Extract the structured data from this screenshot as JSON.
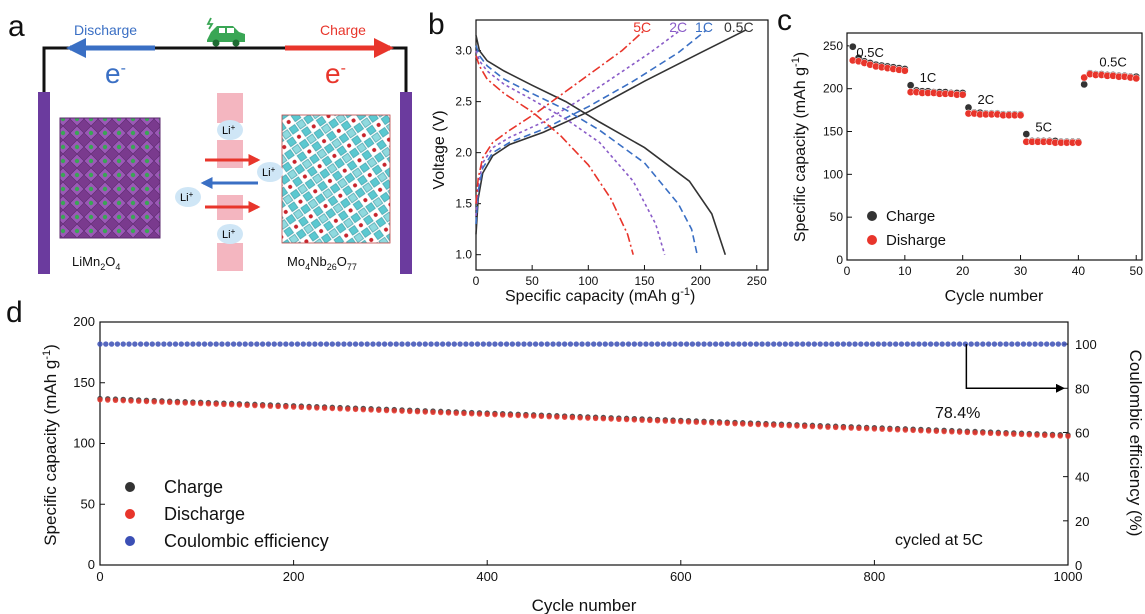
{
  "panel_a": {
    "letter": "a",
    "discharge_label": "Discharge",
    "charge_label": "Charge",
    "electron": "e",
    "electron_sup": "-",
    "ion": "Li",
    "ion_sup": "+",
    "left_material": {
      "base": "LiMn",
      "sub1": "2",
      "mid": "O",
      "sub2": "4"
    },
    "right_material": {
      "p1": "Mo",
      "s1": "4",
      "p2": "Nb",
      "s2": "26",
      "p3": "O",
      "s3": "77"
    },
    "icon": "electric-car-icon",
    "colors": {
      "discharge": "#3a6fc4",
      "charge": "#e8352b",
      "electrode": "#6b3b9e",
      "separator": "#f4b6c0",
      "ion_bubble": "#cfe6f6"
    }
  },
  "chart_data": [
    {
      "type": "line",
      "panel": "b",
      "xlabel": "Specific capacity (mAh g",
      "xlabel_sup": "-1",
      "xlabel_end": ")",
      "ylabel": "Voltage (V)",
      "xlim": [
        0,
        260
      ],
      "ylim": [
        0.85,
        3.3
      ],
      "xticks": [
        0,
        50,
        100,
        150,
        200,
        250
      ],
      "yticks": [
        1.0,
        1.5,
        2.0,
        2.5,
        3.0
      ],
      "ytick_labels": [
        "1.0",
        "1.5",
        "2.0",
        "2.5",
        "3.0"
      ],
      "rate_labels": [
        {
          "text": "5C",
          "color": "#e8352b",
          "x": 148,
          "y": 3.2
        },
        {
          "text": "2C",
          "color": "#8a5cc8",
          "x": 180,
          "y": 3.2
        },
        {
          "text": "1C",
          "color": "#3a6fc4",
          "x": 203,
          "y": 3.2
        },
        {
          "text": "0.5C",
          "color": "#333333",
          "x": 234,
          "y": 3.2
        }
      ],
      "series": [
        {
          "name": "0.5C",
          "color": "#333333",
          "dash": "",
          "charge": {
            "x": [
              0,
              2,
              6,
              15,
              30,
              60,
              100,
              150,
              200,
              240
            ],
            "y": [
              1.2,
              1.55,
              1.8,
              1.97,
              2.08,
              2.2,
              2.4,
              2.7,
              2.98,
              3.2
            ]
          },
          "discharge": {
            "x": [
              0,
              3,
              10,
              25,
              50,
              80,
              110,
              150,
              190,
              210,
              222
            ],
            "y": [
              3.15,
              3.0,
              2.9,
              2.8,
              2.66,
              2.5,
              2.3,
              2.05,
              1.72,
              1.4,
              1.0
            ]
          }
        },
        {
          "name": "1C",
          "color": "#3a6fc4",
          "dash": "7,4",
          "charge": {
            "x": [
              0,
              2,
              6,
              15,
              30,
              60,
              100,
              140,
              180,
              205
            ],
            "y": [
              1.3,
              1.62,
              1.85,
              2.0,
              2.1,
              2.23,
              2.45,
              2.7,
              2.98,
              3.2
            ]
          },
          "discharge": {
            "x": [
              0,
              3,
              10,
              25,
              50,
              80,
              110,
              150,
              180,
              192,
              197
            ],
            "y": [
              3.05,
              2.95,
              2.85,
              2.72,
              2.58,
              2.42,
              2.22,
              1.9,
              1.5,
              1.25,
              1.0
            ]
          }
        },
        {
          "name": "2C",
          "color": "#8a5cc8",
          "dash": "3,3",
          "charge": {
            "x": [
              0,
              2,
              6,
              15,
              30,
              60,
              90,
              120,
              155,
              182
            ],
            "y": [
              1.38,
              1.68,
              1.9,
              2.05,
              2.15,
              2.3,
              2.5,
              2.72,
              2.98,
              3.2
            ]
          },
          "discharge": {
            "x": [
              0,
              3,
              10,
              25,
              50,
              80,
              110,
              140,
              160,
              168
            ],
            "y": [
              3.0,
              2.9,
              2.8,
              2.67,
              2.52,
              2.33,
              2.1,
              1.72,
              1.3,
              1.0
            ]
          }
        },
        {
          "name": "5C",
          "color": "#e8352b",
          "dash": "9,3,2,3",
          "charge": {
            "x": [
              0,
              2,
              6,
              15,
              30,
              55,
              80,
              105,
              130,
              150
            ],
            "y": [
              1.5,
              1.75,
              1.95,
              2.1,
              2.22,
              2.4,
              2.6,
              2.8,
              3.0,
              3.2
            ]
          },
          "discharge": {
            "x": [
              0,
              3,
              10,
              25,
              50,
              75,
              100,
              120,
              135,
              140
            ],
            "y": [
              2.95,
              2.85,
              2.72,
              2.58,
              2.4,
              2.17,
              1.88,
              1.55,
              1.2,
              1.0
            ]
          }
        }
      ]
    },
    {
      "type": "scatter",
      "panel": "c",
      "xlabel": "Cycle number",
      "ylabel": "Specific capacity (mAh g",
      "ylabel_sup": "-1",
      "ylabel_end": ")",
      "xlim": [
        0,
        51
      ],
      "ylim": [
        0,
        265
      ],
      "xticks": [
        0,
        10,
        20,
        30,
        40,
        50
      ],
      "yticks": [
        0,
        50,
        100,
        150,
        200,
        250
      ],
      "legend": [
        {
          "label": "Charge",
          "color": "#333333"
        },
        {
          "label": "Disharge",
          "color": "#e8352b"
        }
      ],
      "rate_labels": [
        {
          "text": "0.5C",
          "x": 4,
          "y": 237
        },
        {
          "text": "1C",
          "x": 14,
          "y": 208
        },
        {
          "text": "2C",
          "x": 24,
          "y": 182
        },
        {
          "text": "5C",
          "x": 34,
          "y": 150
        },
        {
          "text": "0.5C",
          "x": 46,
          "y": 226
        }
      ],
      "series": [
        {
          "name": "Charge",
          "color": "#333333",
          "x": [
            1,
            2,
            3,
            4,
            5,
            6,
            7,
            8,
            9,
            10,
            11,
            12,
            13,
            14,
            15,
            16,
            17,
            18,
            19,
            20,
            21,
            22,
            23,
            24,
            25,
            26,
            27,
            28,
            29,
            30,
            31,
            32,
            33,
            34,
            35,
            36,
            37,
            38,
            39,
            40,
            41,
            42,
            43,
            44,
            45,
            46,
            47,
            48,
            49,
            50
          ],
          "y": [
            249,
            236,
            232,
            230,
            228,
            227,
            226,
            225,
            224,
            223,
            204,
            198,
            197,
            197,
            196,
            196,
            196,
            195,
            195,
            195,
            178,
            172,
            172,
            171,
            171,
            171,
            170,
            170,
            170,
            170,
            147,
            139,
            139,
            139,
            139,
            139,
            138,
            138,
            138,
            138,
            205,
            218,
            217,
            217,
            216,
            216,
            215,
            215,
            214,
            214
          ]
        },
        {
          "name": "Disharge",
          "color": "#e8352b",
          "x": [
            1,
            2,
            3,
            4,
            5,
            6,
            7,
            8,
            9,
            10,
            11,
            12,
            13,
            14,
            15,
            16,
            17,
            18,
            19,
            20,
            21,
            22,
            23,
            24,
            25,
            26,
            27,
            28,
            29,
            30,
            31,
            32,
            33,
            34,
            35,
            36,
            37,
            38,
            39,
            40,
            41,
            42,
            43,
            44,
            45,
            46,
            47,
            48,
            49,
            50
          ],
          "y": [
            233,
            232,
            230,
            228,
            226,
            225,
            224,
            223,
            222,
            221,
            196,
            196,
            195,
            195,
            195,
            194,
            194,
            194,
            193,
            193,
            171,
            171,
            170,
            170,
            170,
            170,
            169,
            169,
            169,
            169,
            138,
            138,
            138,
            138,
            138,
            137,
            137,
            137,
            137,
            137,
            213,
            217,
            216,
            216,
            215,
            215,
            214,
            214,
            213,
            212
          ]
        }
      ]
    },
    {
      "type": "scatter",
      "panel": "d",
      "xlabel": "Cycle number",
      "ylabel": "Specific capacity (mAh g",
      "ylabel_sup": "-1",
      "ylabel_end": ")",
      "y2label": "Coulombic efficiency (%)",
      "xlim": [
        0,
        1000
      ],
      "ylim": [
        0,
        200
      ],
      "y2lim": [
        0,
        110
      ],
      "xticks": [
        0,
        200,
        400,
        600,
        800,
        1000
      ],
      "yticks": [
        0,
        50,
        100,
        150,
        200
      ],
      "y2ticks": [
        0,
        20,
        40,
        60,
        80,
        100
      ],
      "annotation": "78.4%",
      "note": "cycled at 5C",
      "arrow": {
        "x_start": 895,
        "y_ce": 100,
        "y_end": 80,
        "x_end": 995
      },
      "legend": [
        {
          "label": "Charge",
          "color": "#333333"
        },
        {
          "label": "Discharge",
          "color": "#e8352b"
        },
        {
          "label": "Coulombic efficiency",
          "color": "#3b4fb5"
        }
      ],
      "series": [
        {
          "name": "Charge",
          "color": "#333333",
          "start": 137,
          "end": 107
        },
        {
          "name": "Discharge",
          "color": "#e8352b",
          "start": 136,
          "end": 106
        },
        {
          "name": "Coulombic efficiency",
          "color": "#3b4fb5",
          "value": 100,
          "axis": "y2"
        }
      ]
    }
  ],
  "panel_letters": {
    "b": "b",
    "c": "c",
    "d": "d"
  }
}
